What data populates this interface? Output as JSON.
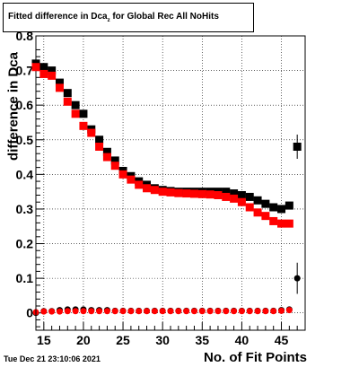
{
  "title": {
    "prefix": "Fitted difference in Dca",
    "sub": "z",
    "suffix": " for Global Rec All NoHits"
  },
  "timestamp": "Tue Dec 21 23:10:06 2021",
  "chart_data": {
    "type": "scatter",
    "xlabel": "No. of Fit Points",
    "ylabel": "difference in Dca",
    "xlim": [
      14,
      48
    ],
    "ylim": [
      -0.05,
      0.8
    ],
    "xticks": [
      15,
      20,
      25,
      30,
      35,
      40,
      45
    ],
    "xtick_labels": [
      "15",
      "20",
      "25",
      "30",
      "35",
      "40",
      "45"
    ],
    "yticks": [
      0,
      0.1,
      0.2,
      0.3,
      0.4,
      0.5,
      0.6,
      0.7,
      0.8
    ],
    "ytick_labels": [
      "0",
      "0.1",
      "0.2",
      "0.3",
      "0.4",
      "0.5",
      "0.6",
      "0.7",
      "0.8"
    ],
    "grid": true,
    "series": [
      {
        "color": "#000000",
        "marker": "square",
        "points": [
          [
            14,
            0.72
          ],
          [
            15,
            0.71
          ],
          [
            16,
            0.7
          ],
          [
            17,
            0.665
          ],
          [
            18,
            0.635
          ],
          [
            19,
            0.6
          ],
          [
            20,
            0.575
          ],
          [
            21,
            0.53
          ],
          [
            22,
            0.5
          ],
          [
            23,
            0.465
          ],
          [
            24,
            0.44
          ],
          [
            25,
            0.41
          ],
          [
            26,
            0.395
          ],
          [
            27,
            0.38
          ],
          [
            28,
            0.37
          ],
          [
            29,
            0.36
          ],
          [
            30,
            0.355
          ],
          [
            31,
            0.352
          ],
          [
            32,
            0.35
          ],
          [
            33,
            0.35
          ],
          [
            34,
            0.35
          ],
          [
            35,
            0.35
          ],
          [
            36,
            0.35
          ],
          [
            37,
            0.35
          ],
          [
            38,
            0.35
          ],
          [
            39,
            0.345
          ],
          [
            40,
            0.34
          ],
          [
            41,
            0.335
          ],
          [
            42,
            0.325
          ],
          [
            43,
            0.315
          ],
          [
            44,
            0.305
          ],
          [
            45,
            0.3
          ],
          [
            46,
            0.31
          ],
          [
            47,
            0.48
          ]
        ]
      },
      {
        "color": "#ff0000",
        "marker": "square",
        "points": [
          [
            14,
            0.71
          ],
          [
            15,
            0.69
          ],
          [
            16,
            0.685
          ],
          [
            17,
            0.65
          ],
          [
            18,
            0.61
          ],
          [
            19,
            0.575
          ],
          [
            20,
            0.54
          ],
          [
            21,
            0.52
          ],
          [
            22,
            0.48
          ],
          [
            23,
            0.45
          ],
          [
            24,
            0.425
          ],
          [
            25,
            0.4
          ],
          [
            26,
            0.385
          ],
          [
            27,
            0.37
          ],
          [
            28,
            0.36
          ],
          [
            29,
            0.355
          ],
          [
            30,
            0.35
          ],
          [
            31,
            0.348
          ],
          [
            32,
            0.346
          ],
          [
            33,
            0.345
          ],
          [
            34,
            0.344
          ],
          [
            35,
            0.343
          ],
          [
            36,
            0.342
          ],
          [
            37,
            0.34
          ],
          [
            38,
            0.335
          ],
          [
            39,
            0.33
          ],
          [
            40,
            0.32
          ],
          [
            41,
            0.305
          ],
          [
            42,
            0.29
          ],
          [
            43,
            0.28
          ],
          [
            44,
            0.265
          ],
          [
            45,
            0.258
          ],
          [
            46,
            0.258
          ]
        ]
      },
      {
        "color": "#000000",
        "marker": "circle",
        "points": [
          [
            14,
            0.0
          ],
          [
            15,
            0.005
          ],
          [
            16,
            0.005
          ],
          [
            17,
            0.008
          ],
          [
            18,
            0.01
          ],
          [
            19,
            0.01
          ],
          [
            20,
            0.01
          ],
          [
            21,
            0.008
          ],
          [
            22,
            0.008
          ],
          [
            23,
            0.008
          ],
          [
            24,
            0.006
          ],
          [
            25,
            0.006
          ],
          [
            26,
            0.006
          ],
          [
            27,
            0.006
          ],
          [
            28,
            0.006
          ],
          [
            29,
            0.006
          ],
          [
            30,
            0.006
          ],
          [
            31,
            0.006
          ],
          [
            32,
            0.006
          ],
          [
            33,
            0.006
          ],
          [
            34,
            0.006
          ],
          [
            35,
            0.006
          ],
          [
            36,
            0.006
          ],
          [
            37,
            0.006
          ],
          [
            38,
            0.006
          ],
          [
            39,
            0.006
          ],
          [
            40,
            0.006
          ],
          [
            41,
            0.006
          ],
          [
            42,
            0.006
          ],
          [
            43,
            0.006
          ],
          [
            44,
            0.006
          ],
          [
            45,
            0.008
          ],
          [
            46,
            0.01
          ],
          [
            47,
            0.1
          ]
        ]
      },
      {
        "color": "#ff0000",
        "marker": "circle",
        "points": [
          [
            14,
            0.002
          ],
          [
            15,
            0.004
          ],
          [
            16,
            0.004
          ],
          [
            17,
            0.004
          ],
          [
            18,
            0.005
          ],
          [
            19,
            0.005
          ],
          [
            20,
            0.005
          ],
          [
            21,
            0.005
          ],
          [
            22,
            0.005
          ],
          [
            23,
            0.005
          ],
          [
            24,
            0.005
          ],
          [
            25,
            0.005
          ],
          [
            26,
            0.005
          ],
          [
            27,
            0.005
          ],
          [
            28,
            0.005
          ],
          [
            29,
            0.005
          ],
          [
            30,
            0.005
          ],
          [
            31,
            0.005
          ],
          [
            32,
            0.005
          ],
          [
            33,
            0.005
          ],
          [
            34,
            0.005
          ],
          [
            35,
            0.005
          ],
          [
            36,
            0.005
          ],
          [
            37,
            0.005
          ],
          [
            38,
            0.005
          ],
          [
            39,
            0.005
          ],
          [
            40,
            0.005
          ],
          [
            41,
            0.005
          ],
          [
            42,
            0.005
          ],
          [
            43,
            0.005
          ],
          [
            44,
            0.005
          ],
          [
            45,
            0.006
          ],
          [
            46,
            0.008
          ]
        ]
      }
    ]
  }
}
